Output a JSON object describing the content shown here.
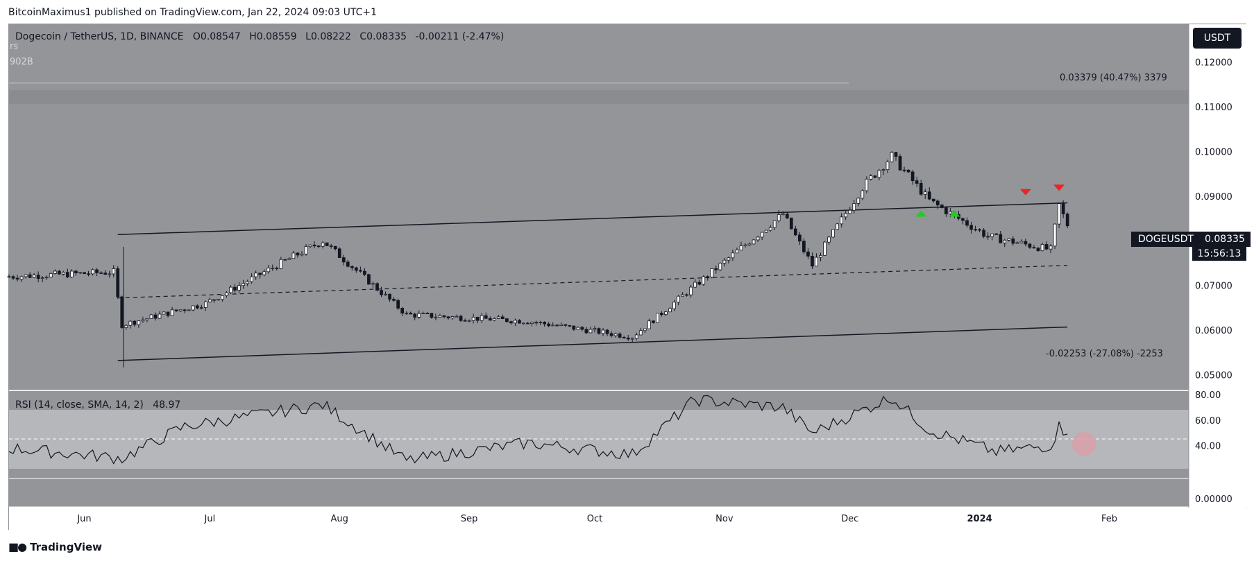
{
  "header": {
    "publisher_line": "BitcoinMaximus1 published on TradingView.com, Jan 22, 2024 09:03 UTC+1"
  },
  "legend": {
    "symbol": "Dogecoin / TetherUS, 1D, BINANCE",
    "o_label": "O",
    "o_value": "0.08547",
    "h_label": "H",
    "h_value": "0.08559",
    "l_label": "L",
    "l_value": "0.08222",
    "c_label": "C",
    "c_value": "0.08335",
    "change": "-0.00211 (-2.47%)",
    "sub1": "rs",
    "sub2": "902B"
  },
  "currency_button": "USDT",
  "price_label": {
    "symbol": "DOGEUSDT",
    "value": "0.08335",
    "countdown": "15:56:13"
  },
  "measure_labels": {
    "up": "0.03379 (40.47%) 3379",
    "down": "-0.02253 (-27.08%) -2253"
  },
  "rsi_legend": {
    "name": "RSI (14, close, SMA, 14, 2)",
    "value": "48.97"
  },
  "branding": {
    "logo_text": "TradingView"
  },
  "colors": {
    "panel_bg": "#939599",
    "rsi_bg": "#b2b4b8",
    "rsi_band": "#c3c5c9",
    "up_candle": "#ffffff",
    "down_candle": "#131722",
    "signal_up": "#22cc22",
    "signal_down": "#ee2222",
    "rsi_highlight": "#d9a0a8"
  },
  "chart_data": {
    "type": "candlestick",
    "symbol": "DOGEUSDT",
    "interval": "1D",
    "x_tick_labels": [
      "Jun",
      "Jul",
      "Aug",
      "Sep",
      "Oct",
      "Nov",
      "Dec",
      "2024",
      "Feb"
    ],
    "x_tick_dates": [
      "2023-06-01",
      "2023-07-01",
      "2023-08-01",
      "2023-09-01",
      "2023-10-01",
      "2023-11-01",
      "2023-12-01",
      "2024-01-01",
      "2024-02-01"
    ],
    "x_range": [
      "2023-05-14",
      "2024-02-20"
    ],
    "y_tick_labels": [
      "0.12000",
      "0.11000",
      "0.10000",
      "0.09000",
      "0.07000",
      "0.06000",
      "0.05000"
    ],
    "y_ticks": [
      0.12,
      0.11,
      0.1,
      0.09,
      0.07,
      0.06,
      0.05
    ],
    "ylim": [
      0.0465,
      0.1285
    ],
    "grid": false,
    "last_close": 0.08335,
    "candles_approx": [
      {
        "date": "2023-05-14",
        "close": 0.072
      },
      {
        "date": "2023-06-08",
        "close": 0.073
      },
      {
        "date": "2023-06-10",
        "close": 0.0612
      },
      {
        "date": "2023-06-30",
        "close": 0.066
      },
      {
        "date": "2023-07-28",
        "close": 0.08
      },
      {
        "date": "2023-08-17",
        "close": 0.0635
      },
      {
        "date": "2023-09-15",
        "close": 0.062
      },
      {
        "date": "2023-10-10",
        "close": 0.0585
      },
      {
        "date": "2023-10-25",
        "close": 0.07
      },
      {
        "date": "2023-11-15",
        "close": 0.086
      },
      {
        "date": "2023-11-22",
        "close": 0.0745
      },
      {
        "date": "2023-12-04",
        "close": 0.092
      },
      {
        "date": "2023-12-11",
        "close": 0.099
      },
      {
        "date": "2023-12-20",
        "close": 0.089
      },
      {
        "date": "2024-01-03",
        "close": 0.081
      },
      {
        "date": "2024-01-18",
        "close": 0.078
      },
      {
        "date": "2024-01-20",
        "close": 0.088
      },
      {
        "date": "2024-01-22",
        "close": 0.08335
      }
    ],
    "channel": {
      "upper": [
        {
          "date": "2023-06-09",
          "value": 0.0814
        },
        {
          "date": "2024-01-22",
          "value": 0.0885
        }
      ],
      "middle": [
        {
          "date": "2023-06-09",
          "value": 0.0672
        },
        {
          "date": "2024-01-22",
          "value": 0.0745
        }
      ],
      "lower": [
        {
          "date": "2023-06-09",
          "value": 0.0532
        },
        {
          "date": "2024-01-22",
          "value": 0.0607
        }
      ]
    },
    "measures": [
      {
        "value": 0.03379,
        "percent": 40.47,
        "ticks": 3379
      },
      {
        "value": -0.02253,
        "percent": -27.08,
        "ticks": -2253
      }
    ],
    "signals": [
      {
        "type": "support",
        "date": "2023-12-18",
        "value": 0.0865
      },
      {
        "type": "support",
        "date": "2023-12-26",
        "value": 0.0865
      },
      {
        "type": "resistance",
        "date": "2024-01-12",
        "value": 0.0905
      },
      {
        "type": "resistance",
        "date": "2024-01-20",
        "value": 0.0915
      }
    ],
    "rsi": {
      "params": "14, close, SMA, 14, 2",
      "current": 48.97,
      "y_tick_labels": [
        "80.00",
        "60.00",
        "40.00",
        "0.00000"
      ],
      "ylim": [
        0,
        80
      ],
      "bands": [
        30,
        70
      ],
      "midline": 50,
      "points": [
        {
          "date": "2023-05-14",
          "value": 38
        },
        {
          "date": "2023-06-10",
          "value": 30
        },
        {
          "date": "2023-06-25",
          "value": 55
        },
        {
          "date": "2023-07-28",
          "value": 72
        },
        {
          "date": "2023-08-17",
          "value": 28
        },
        {
          "date": "2023-09-15",
          "value": 42
        },
        {
          "date": "2023-10-10",
          "value": 33
        },
        {
          "date": "2023-10-25",
          "value": 76
        },
        {
          "date": "2023-11-15",
          "value": 70
        },
        {
          "date": "2023-11-22",
          "value": 50
        },
        {
          "date": "2023-12-11",
          "value": 78
        },
        {
          "date": "2023-12-20",
          "value": 52
        },
        {
          "date": "2024-01-05",
          "value": 35
        },
        {
          "date": "2024-01-18",
          "value": 40
        },
        {
          "date": "2024-01-20",
          "value": 55
        },
        {
          "date": "2024-01-22",
          "value": 48.97
        }
      ]
    }
  }
}
